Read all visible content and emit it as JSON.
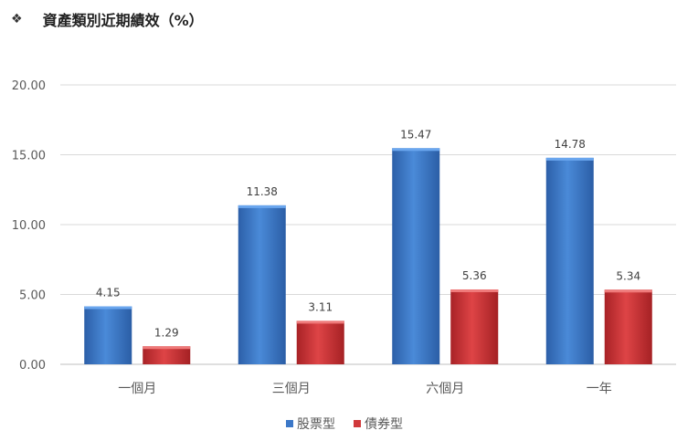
{
  "title": "資產類別近期績效（%）",
  "title_bullet": "❖",
  "chart_data": {
    "type": "bar",
    "title": "資產類別近期績效（%）",
    "categories": [
      "一個月",
      "三個月",
      "六個月",
      "一年"
    ],
    "series": [
      {
        "name": "股票型",
        "values": [
          4.15,
          11.38,
          15.47,
          14.78
        ],
        "color": "#3c78c8"
      },
      {
        "name": "債券型",
        "values": [
          1.29,
          3.11,
          5.36,
          5.34
        ],
        "color": "#d0393b"
      }
    ],
    "y_ticks": [
      "0.00",
      "5.00",
      "10.00",
      "15.00",
      "20.00"
    ],
    "ylim": [
      0,
      20
    ],
    "grid": true,
    "legend": "bottom-center",
    "xlabel": "",
    "ylabel": ""
  }
}
